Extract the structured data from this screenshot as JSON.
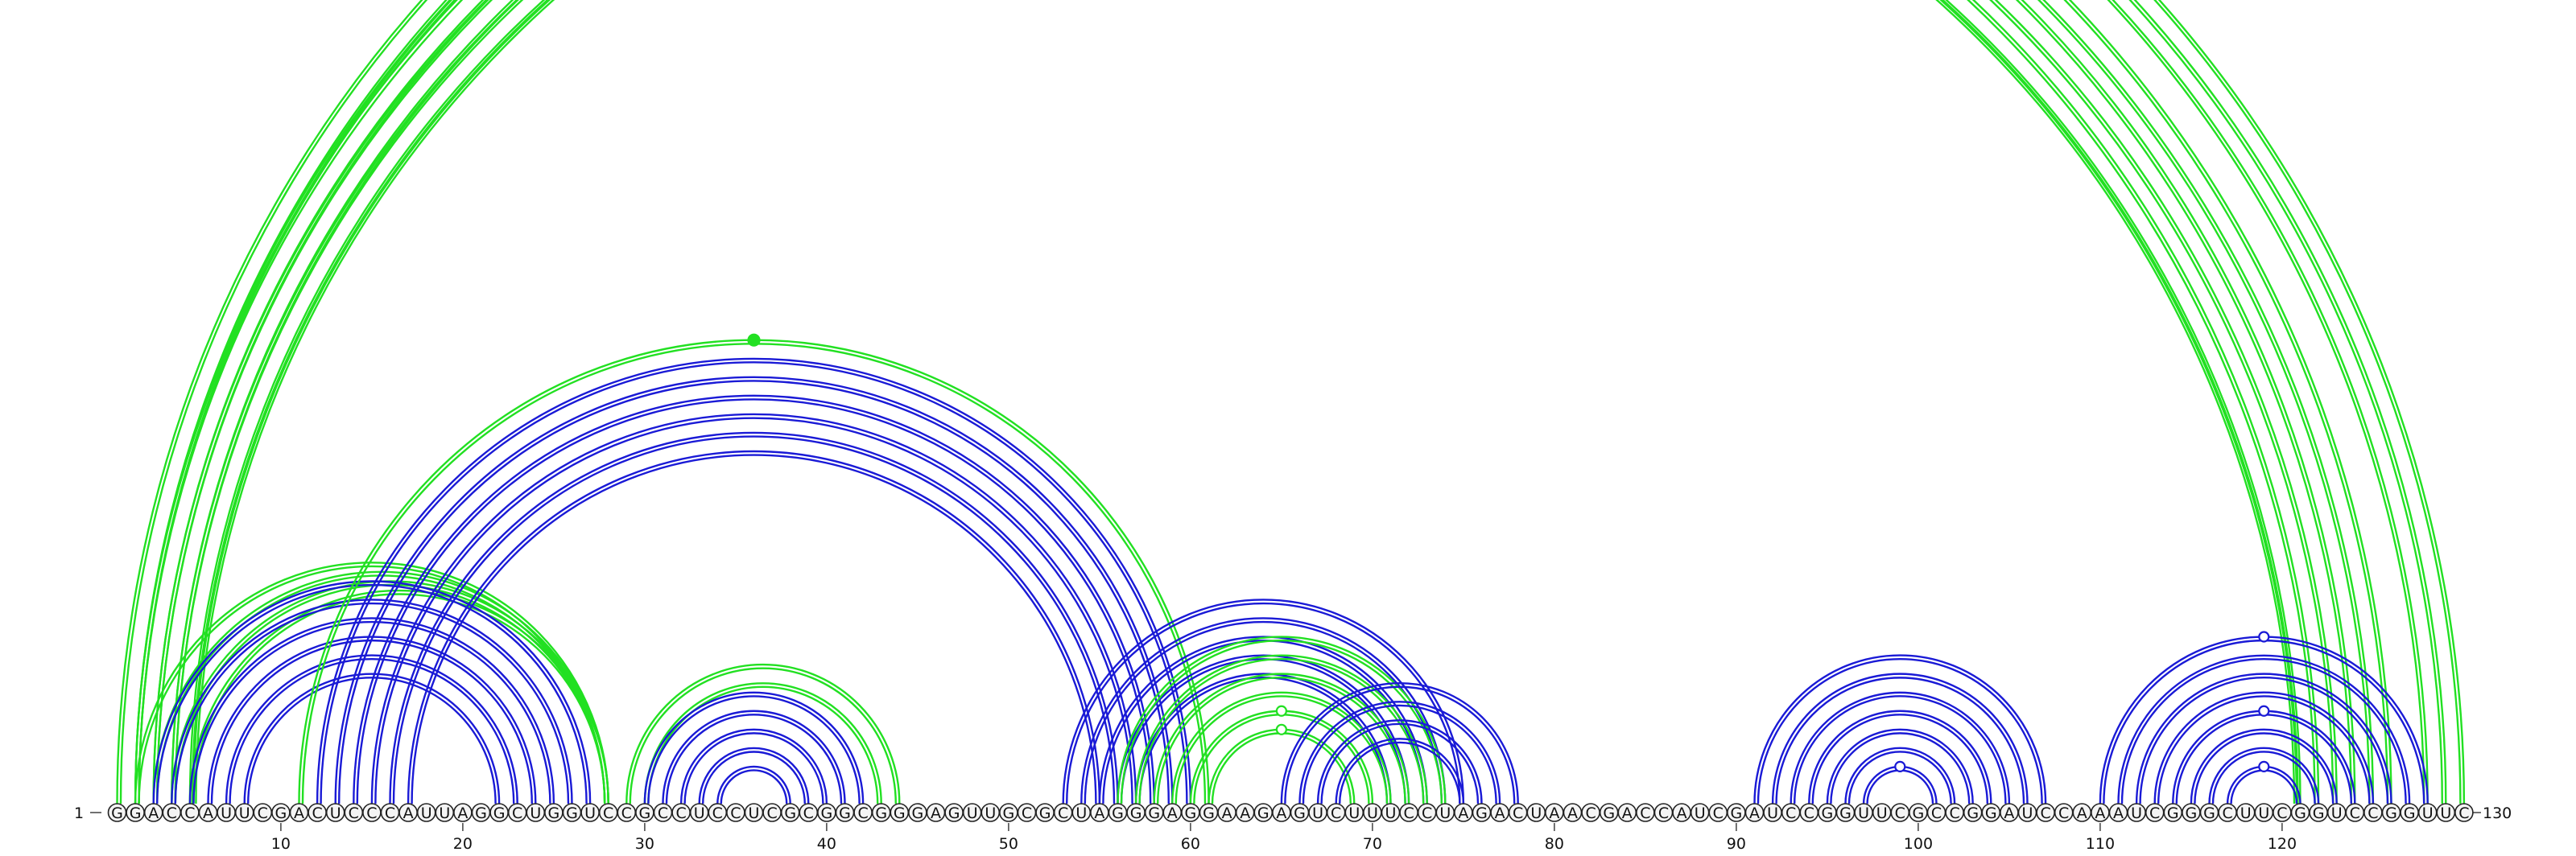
{
  "sequence": "GGACCAUUCGACUCCCAUUAGGCUGGUCCGCCUCCUCGCGGCGGGAGUUGCGCUAGGGAGGAAGAGUCUUUCCUAGACUAACGACCAUCGAUCCGGUUCGCCGGAUCCAAAUCGGGCUUCGGUCCGGUUC",
  "start_label": "1",
  "end_label": "130",
  "position_ticks": [
    "10",
    "20",
    "30",
    "40",
    "50",
    "60",
    "70",
    "80",
    "90",
    "100",
    "110",
    "120"
  ],
  "colors": {
    "blue": "#1a1ad6",
    "green": "#22e022"
  },
  "arc_groups": [
    {
      "color": "green",
      "pairs": [
        [
          1,
          130
        ],
        [
          2,
          129
        ],
        [
          2,
          128
        ],
        [
          2,
          126
        ],
        [
          3,
          125
        ],
        [
          3,
          124
        ],
        [
          4,
          123
        ],
        [
          4,
          122
        ],
        [
          5,
          121
        ],
        [
          5,
          121
        ]
      ],
      "marker": {
        "at": "outer",
        "style": "hollow"
      }
    },
    {
      "color": "green",
      "pairs": [
        [
          2,
          28
        ],
        [
          3,
          28
        ],
        [
          4,
          28
        ],
        [
          5,
          28
        ]
      ]
    },
    {
      "color": "blue",
      "pairs": [
        [
          3,
          27
        ],
        [
          4,
          26
        ],
        [
          5,
          25
        ],
        [
          6,
          24
        ],
        [
          7,
          23
        ],
        [
          8,
          22
        ]
      ]
    },
    {
      "color": "green",
      "pairs": [
        [
          11,
          61
        ]
      ],
      "marker": {
        "at": "outer",
        "style": "filled"
      }
    },
    {
      "color": "blue",
      "pairs": [
        [
          12,
          60
        ],
        [
          13,
          59
        ],
        [
          14,
          58
        ],
        [
          15,
          57
        ],
        [
          16,
          56
        ],
        [
          17,
          55
        ]
      ]
    },
    {
      "color": "green",
      "pairs": [
        [
          29,
          44
        ],
        [
          30,
          43
        ]
      ]
    },
    {
      "color": "blue",
      "pairs": [
        [
          30,
          42
        ],
        [
          31,
          41
        ],
        [
          32,
          40
        ],
        [
          33,
          39
        ],
        [
          34,
          38
        ]
      ]
    },
    {
      "color": "blue",
      "pairs": [
        [
          53,
          75
        ],
        [
          54,
          74
        ],
        [
          55,
          73
        ],
        [
          56,
          72
        ],
        [
          57,
          71
        ]
      ]
    },
    {
      "color": "green",
      "pairs": [
        [
          56,
          74
        ],
        [
          57,
          73
        ],
        [
          58,
          72
        ],
        [
          59,
          71
        ],
        [
          60,
          70
        ],
        [
          61,
          69
        ]
      ],
      "marker": {
        "at": "inner2",
        "style": "hollow"
      }
    },
    {
      "color": "blue",
      "pairs": [
        [
          65,
          78
        ],
        [
          66,
          77
        ],
        [
          67,
          76
        ],
        [
          68,
          75
        ]
      ]
    },
    {
      "color": "blue",
      "pairs": [
        [
          91,
          107
        ],
        [
          92,
          106
        ],
        [
          93,
          105
        ],
        [
          94,
          104
        ],
        [
          95,
          103
        ],
        [
          96,
          102
        ],
        [
          97,
          101
        ]
      ],
      "marker": {
        "at": "inner",
        "style": "hollow"
      }
    },
    {
      "color": "blue",
      "pairs": [
        [
          110,
          128
        ],
        [
          111,
          127
        ],
        [
          112,
          126
        ],
        [
          113,
          125
        ],
        [
          114,
          124
        ],
        [
          115,
          123
        ],
        [
          116,
          122
        ],
        [
          117,
          121
        ]
      ],
      "marker": {
        "at": "three",
        "style": "hollow"
      }
    }
  ]
}
